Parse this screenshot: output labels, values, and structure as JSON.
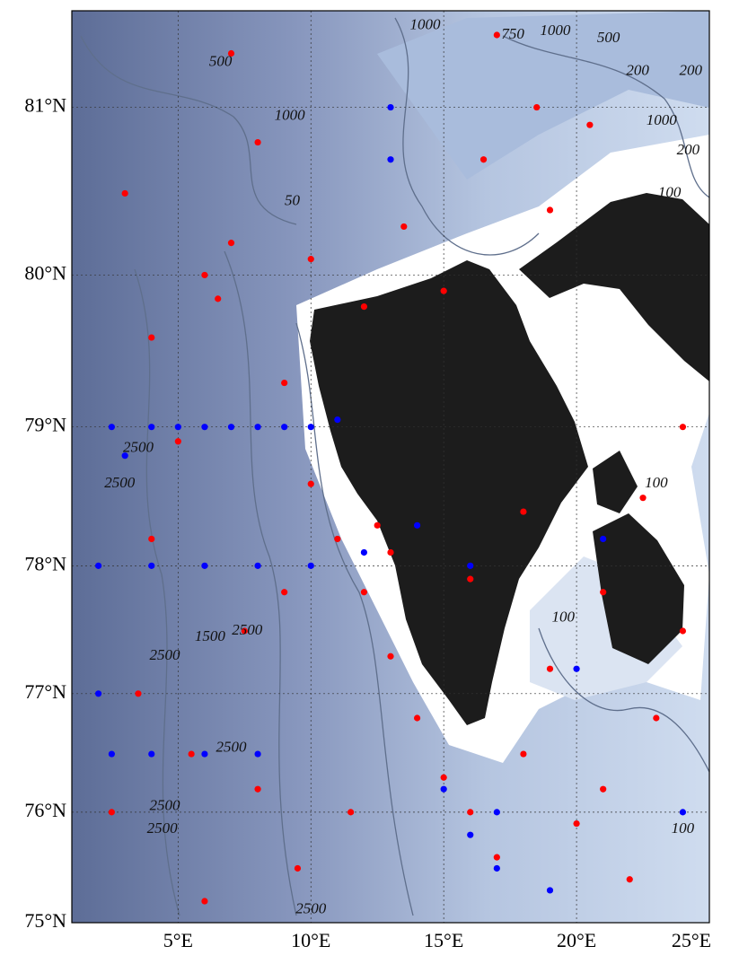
{
  "chart_data": {
    "type": "map",
    "projection": "mercator",
    "xlim": [
      1,
      25
    ],
    "ylim": [
      75,
      81.53
    ],
    "grid": true,
    "xticks": [
      {
        "value": 5,
        "label": "5°E"
      },
      {
        "value": 10,
        "label": "10°E"
      },
      {
        "value": 15,
        "label": "15°E"
      },
      {
        "value": 20,
        "label": "20°E"
      },
      {
        "value": 25,
        "label": "25°E"
      }
    ],
    "yticks": [
      {
        "value": 75,
        "label": "75°N"
      },
      {
        "value": 76,
        "label": "76°N"
      },
      {
        "value": 77,
        "label": "77°N"
      },
      {
        "value": 78,
        "label": "78°N"
      },
      {
        "value": 79,
        "label": "79°N"
      },
      {
        "value": 80,
        "label": "80°N"
      },
      {
        "value": 81,
        "label": "81°N"
      }
    ],
    "series": [
      {
        "color": "#ff0000",
        "lon": [
          3,
          4,
          5,
          6,
          6.5,
          7,
          8,
          9,
          10,
          11,
          12,
          13,
          14,
          15,
          16,
          17,
          18,
          19,
          20,
          21,
          22,
          23,
          24,
          3.5,
          5.5,
          7.5,
          9.5,
          11.5,
          13.5,
          16.5,
          18.5,
          20.5,
          22.5,
          6,
          8,
          10,
          12,
          12.5,
          16,
          18,
          4,
          9,
          13,
          19,
          21,
          24,
          2.5,
          7,
          15,
          17
        ],
        "lat": [
          80.5,
          79.6,
          78.9,
          80.0,
          79.85,
          81.3,
          80.8,
          79.3,
          78.6,
          78.2,
          77.8,
          77.3,
          76.8,
          76.3,
          76.0,
          75.6,
          76.5,
          77.2,
          75.9,
          76.2,
          75.4,
          76.8,
          79.0,
          77.0,
          76.5,
          77.5,
          75.5,
          76.0,
          80.3,
          80.7,
          81.0,
          80.9,
          78.5,
          75.2,
          76.2,
          80.1,
          79.8,
          78.3,
          77.9,
          78.4,
          78.2,
          77.8,
          78.1,
          80.4,
          77.8,
          77.5,
          76.0,
          80.2,
          79.9,
          81.4
        ]
      },
      {
        "color": "#0000ff",
        "lon": [
          2.5,
          3,
          4,
          5,
          6,
          7,
          8,
          9,
          10,
          11,
          2,
          4,
          6,
          8,
          10,
          12,
          14,
          16,
          2,
          2.5,
          4,
          6,
          8,
          15,
          16,
          17,
          17,
          19,
          24,
          20,
          21,
          13,
          13
        ],
        "lat": [
          79.0,
          78.8,
          79.0,
          79.0,
          79.0,
          79.0,
          79.0,
          79.0,
          79.0,
          79.05,
          78.0,
          78.0,
          78.0,
          78.0,
          78.0,
          78.1,
          78.3,
          78.0,
          77.0,
          76.5,
          76.5,
          76.5,
          76.5,
          76.2,
          75.8,
          75.5,
          76.0,
          75.3,
          76.0,
          77.2,
          78.2,
          81.0,
          80.7
        ]
      }
    ],
    "contour_labels": [
      {
        "text": "500",
        "lon": 6.6,
        "lat": 81.25
      },
      {
        "text": "1000",
        "lon": 9.2,
        "lat": 80.95
      },
      {
        "text": "1000",
        "lon": 14.3,
        "lat": 81.45
      },
      {
        "text": "750",
        "lon": 17.6,
        "lat": 81.4
      },
      {
        "text": "1000",
        "lon": 19.2,
        "lat": 81.42
      },
      {
        "text": "500",
        "lon": 21.2,
        "lat": 81.38
      },
      {
        "text": "200",
        "lon": 22.3,
        "lat": 81.2
      },
      {
        "text": "200",
        "lon": 24.3,
        "lat": 81.2
      },
      {
        "text": "1000",
        "lon": 23.2,
        "lat": 80.92
      },
      {
        "text": "200",
        "lon": 24.2,
        "lat": 80.75
      },
      {
        "text": "100",
        "lon": 23.5,
        "lat": 80.5
      },
      {
        "text": "50",
        "lon": 9.3,
        "lat": 80.45
      },
      {
        "text": "2500",
        "lon": 3.5,
        "lat": 78.85
      },
      {
        "text": "2500",
        "lon": 2.8,
        "lat": 78.6
      },
      {
        "text": "2500",
        "lon": 4.5,
        "lat": 77.3
      },
      {
        "text": "1500",
        "lon": 6.2,
        "lat": 77.45
      },
      {
        "text": "2500",
        "lon": 7.6,
        "lat": 77.5
      },
      {
        "text": "2500",
        "lon": 7.0,
        "lat": 76.55
      },
      {
        "text": "2500",
        "lon": 4.5,
        "lat": 76.05
      },
      {
        "text": "2500",
        "lon": 4.4,
        "lat": 75.85
      },
      {
        "text": "2500",
        "lon": 10.0,
        "lat": 75.12
      },
      {
        "text": "100",
        "lon": 23.0,
        "lat": 78.6
      },
      {
        "text": "100",
        "lon": 19.5,
        "lat": 77.6
      },
      {
        "text": "100",
        "lon": 24.0,
        "lat": 75.85
      }
    ]
  }
}
